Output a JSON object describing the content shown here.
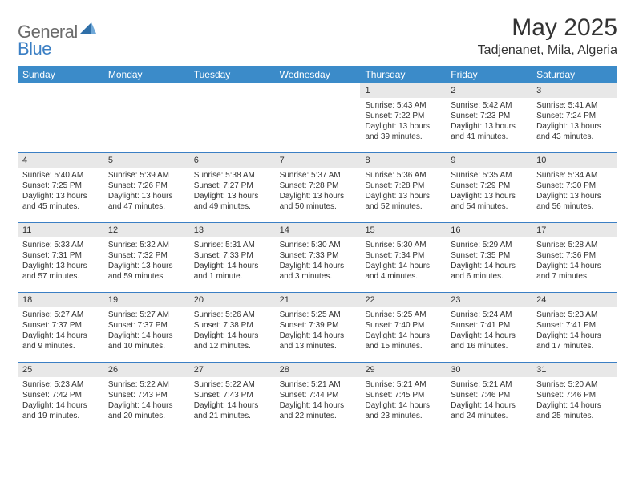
{
  "brand": {
    "part1": "General",
    "part2": "Blue"
  },
  "title": "May 2025",
  "location": "Tadjenanet, Mila, Algeria",
  "header_bg": "#3b8bc9",
  "rule_color": "#3b7fc4",
  "daynum_bg": "#e8e8e8",
  "weekdays": [
    "Sunday",
    "Monday",
    "Tuesday",
    "Wednesday",
    "Thursday",
    "Friday",
    "Saturday"
  ],
  "weeks": [
    [
      null,
      null,
      null,
      null,
      {
        "n": "1",
        "sr": "5:43 AM",
        "ss": "7:22 PM",
        "dl": "13 hours and 39 minutes."
      },
      {
        "n": "2",
        "sr": "5:42 AM",
        "ss": "7:23 PM",
        "dl": "13 hours and 41 minutes."
      },
      {
        "n": "3",
        "sr": "5:41 AM",
        "ss": "7:24 PM",
        "dl": "13 hours and 43 minutes."
      }
    ],
    [
      {
        "n": "4",
        "sr": "5:40 AM",
        "ss": "7:25 PM",
        "dl": "13 hours and 45 minutes."
      },
      {
        "n": "5",
        "sr": "5:39 AM",
        "ss": "7:26 PM",
        "dl": "13 hours and 47 minutes."
      },
      {
        "n": "6",
        "sr": "5:38 AM",
        "ss": "7:27 PM",
        "dl": "13 hours and 49 minutes."
      },
      {
        "n": "7",
        "sr": "5:37 AM",
        "ss": "7:28 PM",
        "dl": "13 hours and 50 minutes."
      },
      {
        "n": "8",
        "sr": "5:36 AM",
        "ss": "7:28 PM",
        "dl": "13 hours and 52 minutes."
      },
      {
        "n": "9",
        "sr": "5:35 AM",
        "ss": "7:29 PM",
        "dl": "13 hours and 54 minutes."
      },
      {
        "n": "10",
        "sr": "5:34 AM",
        "ss": "7:30 PM",
        "dl": "13 hours and 56 minutes."
      }
    ],
    [
      {
        "n": "11",
        "sr": "5:33 AM",
        "ss": "7:31 PM",
        "dl": "13 hours and 57 minutes."
      },
      {
        "n": "12",
        "sr": "5:32 AM",
        "ss": "7:32 PM",
        "dl": "13 hours and 59 minutes."
      },
      {
        "n": "13",
        "sr": "5:31 AM",
        "ss": "7:33 PM",
        "dl": "14 hours and 1 minute."
      },
      {
        "n": "14",
        "sr": "5:30 AM",
        "ss": "7:33 PM",
        "dl": "14 hours and 3 minutes."
      },
      {
        "n": "15",
        "sr": "5:30 AM",
        "ss": "7:34 PM",
        "dl": "14 hours and 4 minutes."
      },
      {
        "n": "16",
        "sr": "5:29 AM",
        "ss": "7:35 PM",
        "dl": "14 hours and 6 minutes."
      },
      {
        "n": "17",
        "sr": "5:28 AM",
        "ss": "7:36 PM",
        "dl": "14 hours and 7 minutes."
      }
    ],
    [
      {
        "n": "18",
        "sr": "5:27 AM",
        "ss": "7:37 PM",
        "dl": "14 hours and 9 minutes."
      },
      {
        "n": "19",
        "sr": "5:27 AM",
        "ss": "7:37 PM",
        "dl": "14 hours and 10 minutes."
      },
      {
        "n": "20",
        "sr": "5:26 AM",
        "ss": "7:38 PM",
        "dl": "14 hours and 12 minutes."
      },
      {
        "n": "21",
        "sr": "5:25 AM",
        "ss": "7:39 PM",
        "dl": "14 hours and 13 minutes."
      },
      {
        "n": "22",
        "sr": "5:25 AM",
        "ss": "7:40 PM",
        "dl": "14 hours and 15 minutes."
      },
      {
        "n": "23",
        "sr": "5:24 AM",
        "ss": "7:41 PM",
        "dl": "14 hours and 16 minutes."
      },
      {
        "n": "24",
        "sr": "5:23 AM",
        "ss": "7:41 PM",
        "dl": "14 hours and 17 minutes."
      }
    ],
    [
      {
        "n": "25",
        "sr": "5:23 AM",
        "ss": "7:42 PM",
        "dl": "14 hours and 19 minutes."
      },
      {
        "n": "26",
        "sr": "5:22 AM",
        "ss": "7:43 PM",
        "dl": "14 hours and 20 minutes."
      },
      {
        "n": "27",
        "sr": "5:22 AM",
        "ss": "7:43 PM",
        "dl": "14 hours and 21 minutes."
      },
      {
        "n": "28",
        "sr": "5:21 AM",
        "ss": "7:44 PM",
        "dl": "14 hours and 22 minutes."
      },
      {
        "n": "29",
        "sr": "5:21 AM",
        "ss": "7:45 PM",
        "dl": "14 hours and 23 minutes."
      },
      {
        "n": "30",
        "sr": "5:21 AM",
        "ss": "7:46 PM",
        "dl": "14 hours and 24 minutes."
      },
      {
        "n": "31",
        "sr": "5:20 AM",
        "ss": "7:46 PM",
        "dl": "14 hours and 25 minutes."
      }
    ]
  ],
  "labels": {
    "sunrise": "Sunrise:",
    "sunset": "Sunset:",
    "daylight": "Daylight:"
  }
}
